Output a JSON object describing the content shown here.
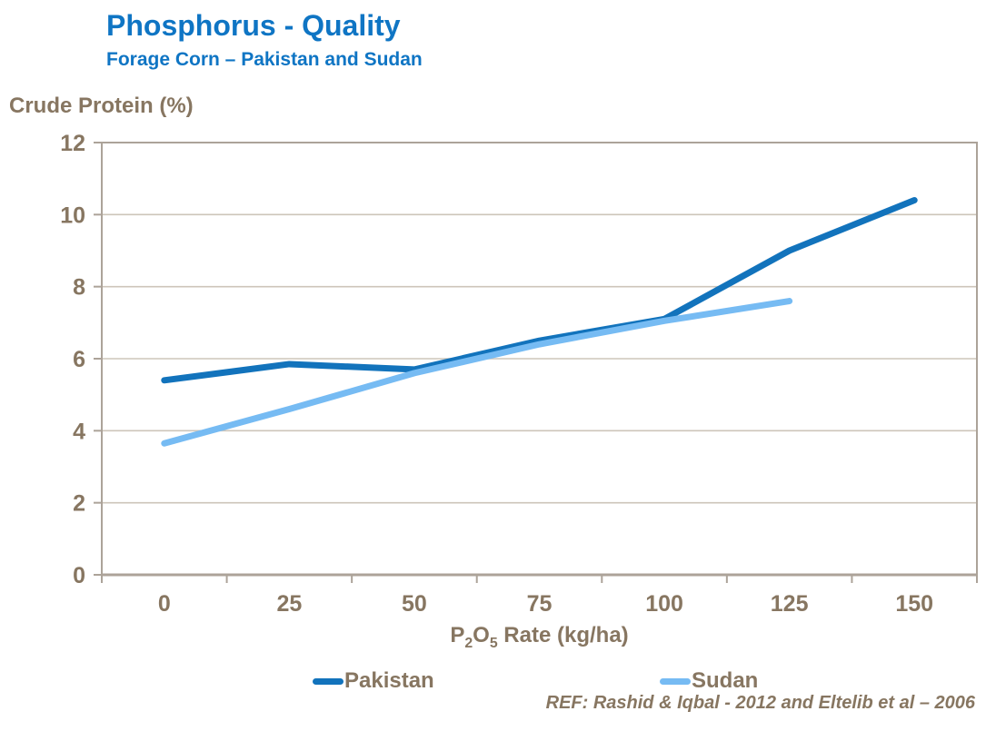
{
  "header": {
    "title": "Phosphorus - Quality",
    "subtitle": "Forage Corn – Pakistan and Sudan"
  },
  "palette": {
    "heading_blue": "#0F75C4",
    "text_brown": "#877661",
    "axis_line": "#ACA399",
    "gridline": "#CDC5BA",
    "pakistan_blue": "#1273BC",
    "sudan_blue": "#76BBF3"
  },
  "xlabel_parts": {
    "base1": "P",
    "sub1": "2",
    "base2": "O",
    "sub2": "5",
    "rest": " Rate (kg/ha)"
  },
  "footer": {
    "reference": "REF: Rashid & Iqbal - 2012 and Eltelib et al – 2006"
  },
  "chart_data": {
    "type": "line",
    "title": "Phosphorus - Quality",
    "subtitle": "Forage Corn – Pakistan and Sudan",
    "x": [
      0,
      25,
      50,
      75,
      100,
      125,
      150
    ],
    "xlabel": "P2O5 Rate (kg/ha)",
    "ylabel": "Crude Protein (%)",
    "ylim": [
      0,
      12
    ],
    "yticks": [
      0,
      2,
      4,
      6,
      8,
      10,
      12
    ],
    "grid": "horizontal",
    "legend_position": "bottom",
    "series": [
      {
        "name": "Pakistan",
        "color": "#1273BC",
        "values": [
          5.4,
          5.85,
          5.7,
          6.5,
          7.1,
          9.0,
          10.4
        ]
      },
      {
        "name": "Sudan",
        "color": "#76BBF3",
        "values": [
          3.65,
          4.6,
          5.6,
          6.4,
          7.05,
          7.6,
          null
        ]
      }
    ]
  }
}
